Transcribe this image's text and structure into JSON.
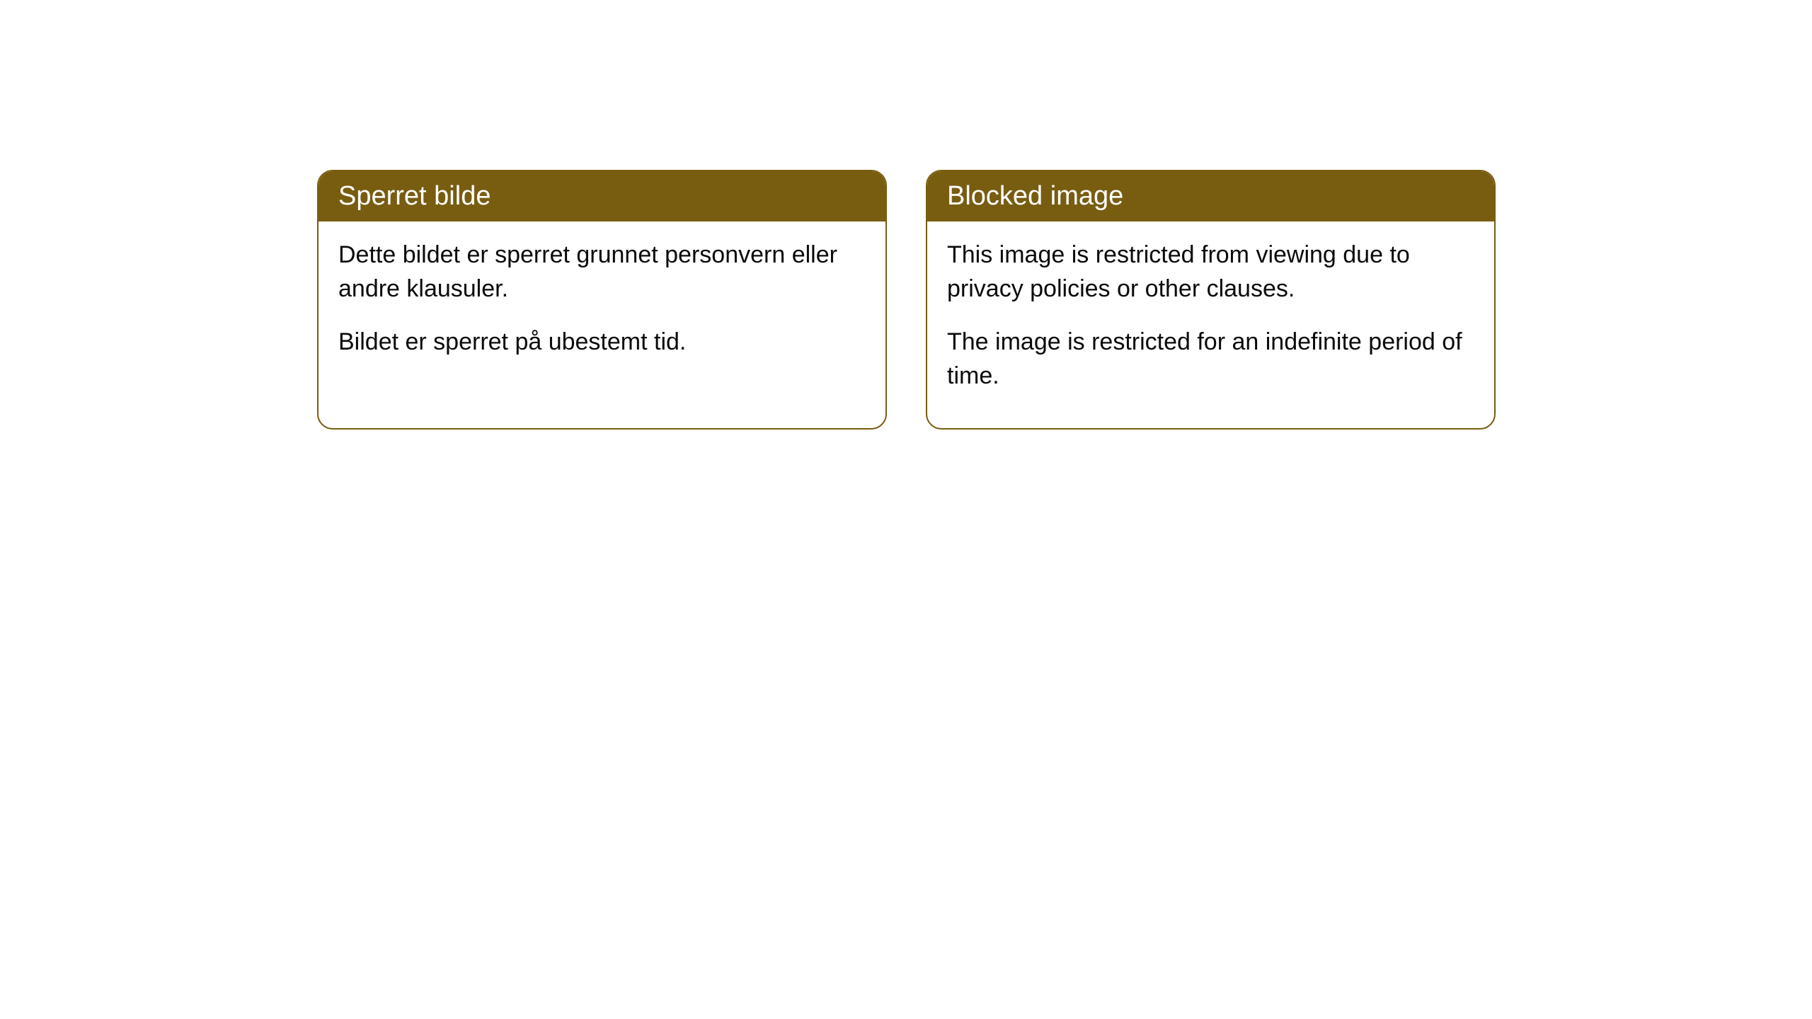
{
  "cards": [
    {
      "title": "Sperret bilde",
      "para1": "Dette bildet er sperret grunnet personvern eller andre klausuler.",
      "para2": "Bildet er sperret på ubestemt tid."
    },
    {
      "title": "Blocked image",
      "para1": "This image is restricted from viewing due to privacy policies or other clauses.",
      "para2": "The image is restricted for an indefinite period of time."
    }
  ],
  "style": {
    "header_bg": "#785d11",
    "header_text_color": "#ffffff",
    "border_color": "#785d11",
    "body_bg": "#ffffff",
    "body_text_color": "#0a0a0a",
    "border_radius": 22,
    "title_fontsize": 38,
    "body_fontsize": 34
  }
}
